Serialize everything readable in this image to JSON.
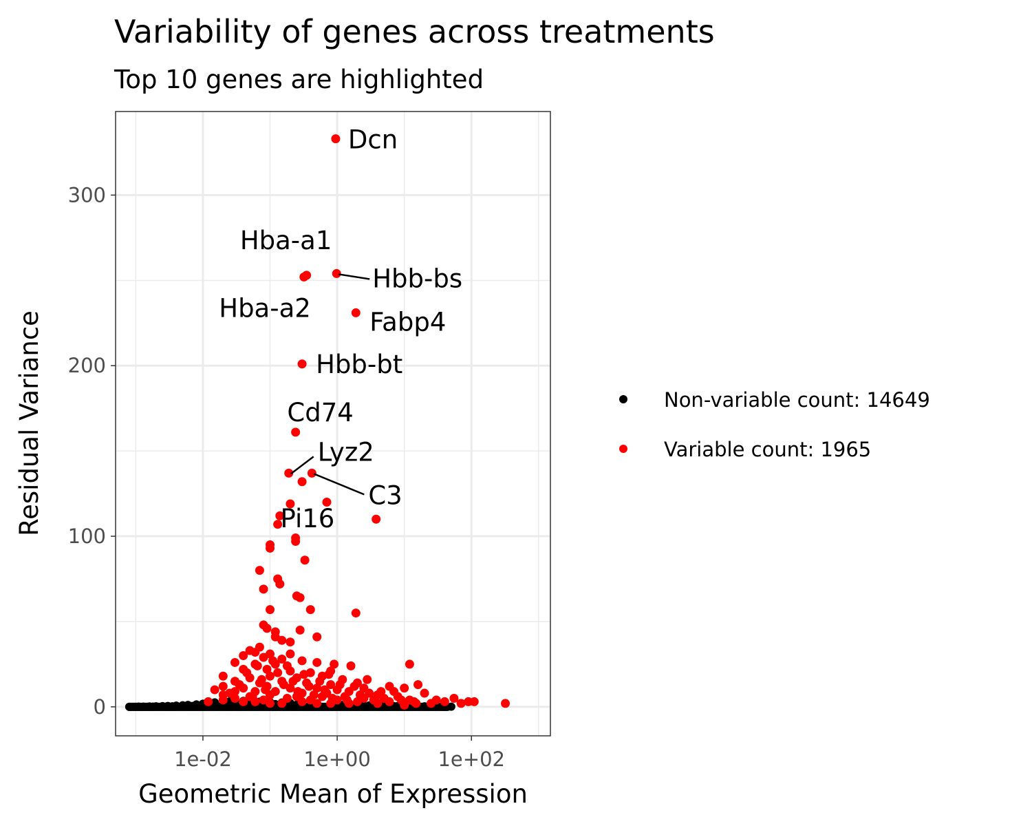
{
  "chart_data": {
    "type": "scatter",
    "title": "Variability of genes across treatments",
    "subtitle": "Top 10 genes are highlighted",
    "xlabel": "Geometric Mean of Expression",
    "ylabel": "Residual Variance",
    "x_scale": "log10",
    "xlim": [
      0.0005,
      1500
    ],
    "ylim": [
      -17,
      349
    ],
    "x_ticks": [
      0.01,
      1,
      100
    ],
    "x_tick_labels": [
      "1e-02",
      "1e+00",
      "1e+02"
    ],
    "y_ticks": [
      0,
      100,
      200,
      300
    ],
    "y_tick_labels": [
      "0",
      "100",
      "200",
      "300"
    ],
    "grid": true,
    "legend_position": "right",
    "colors": {
      "non_variable": "#000000",
      "variable": "#ff0000"
    },
    "series": [
      {
        "name": "Non-variable count: 14649",
        "color": "#000000",
        "points": [
          [
            0.001,
            0
          ],
          [
            0.0013,
            0.1
          ],
          [
            0.0016,
            0.2
          ],
          [
            0.002,
            0.3
          ],
          [
            0.0025,
            0.4
          ],
          [
            0.003,
            0.5
          ],
          [
            0.004,
            0.7
          ],
          [
            0.005,
            0.9
          ],
          [
            0.006,
            1.1
          ],
          [
            0.008,
            1.4
          ],
          [
            0.01,
            1.8
          ],
          [
            0.012,
            2.2
          ],
          [
            0.015,
            2.6
          ],
          [
            0.02,
            3
          ],
          [
            0.025,
            3.2
          ],
          [
            0.03,
            3.4
          ],
          [
            0.04,
            3.5
          ],
          [
            0.05,
            3.2
          ],
          [
            0.07,
            3
          ],
          [
            0.1,
            2.8
          ],
          [
            0.15,
            2.5
          ],
          [
            0.2,
            2.2
          ],
          [
            0.3,
            2
          ],
          [
            0.5,
            1.7
          ],
          [
            0.8,
            1.4
          ],
          [
            1.2,
            1.2
          ],
          [
            2,
            1
          ],
          [
            3,
            0.8
          ],
          [
            5,
            0.6
          ],
          [
            8,
            0.5
          ],
          [
            12,
            0.4
          ],
          [
            20,
            0.3
          ],
          [
            30,
            0.2
          ],
          [
            50,
            0.1
          ],
          [
            0.0015,
            0
          ],
          [
            0.003,
            0.1
          ],
          [
            0.006,
            0.2
          ],
          [
            0.012,
            0.4
          ],
          [
            0.025,
            0.6
          ],
          [
            0.05,
            0.8
          ],
          [
            0.1,
            0.9
          ],
          [
            0.2,
            1
          ],
          [
            0.4,
            0.8
          ],
          [
            0.8,
            0.6
          ],
          [
            1.5,
            0.5
          ],
          [
            3,
            0.3
          ],
          [
            6,
            0.2
          ],
          [
            10,
            0.1
          ],
          [
            0.0008,
            0
          ],
          [
            0.0011,
            0.1
          ],
          [
            0.0018,
            0.1
          ],
          [
            0.0035,
            0.3
          ],
          [
            0.007,
            0.5
          ],
          [
            0.015,
            1
          ],
          [
            0.03,
            1.5
          ],
          [
            0.06,
            1.8
          ],
          [
            0.12,
            1.6
          ],
          [
            0.25,
            1.3
          ],
          [
            0.5,
            1.1
          ],
          [
            1,
            0.9
          ],
          [
            2.5,
            0.7
          ],
          [
            7,
            0.4
          ],
          [
            15,
            0.2
          ],
          [
            25,
            0.1
          ],
          [
            40,
            0.05
          ]
        ]
      },
      {
        "name": "Variable count: 1965",
        "color": "#ff0000",
        "points": [
          [
            0.95,
            333
          ],
          [
            0.32,
            252
          ],
          [
            0.35,
            253
          ],
          [
            0.98,
            254
          ],
          [
            1.9,
            231
          ],
          [
            0.3,
            201
          ],
          [
            0.24,
            161
          ],
          [
            0.19,
            137
          ],
          [
            0.42,
            137
          ],
          [
            0.3,
            132
          ],
          [
            0.7,
            120
          ],
          [
            3.8,
            110
          ],
          [
            0.2,
            119
          ],
          [
            0.14,
            112
          ],
          [
            0.13,
            107
          ],
          [
            0.24,
            99
          ],
          [
            0.24,
            97
          ],
          [
            0.1,
            95
          ],
          [
            0.1,
            93
          ],
          [
            0.33,
            86
          ],
          [
            0.07,
            80
          ],
          [
            0.13,
            75
          ],
          [
            0.14,
            72
          ],
          [
            0.08,
            69
          ],
          [
            0.25,
            65
          ],
          [
            0.28,
            64
          ],
          [
            0.1,
            57
          ],
          [
            0.4,
            57
          ],
          [
            1.9,
            55
          ],
          [
            0.08,
            48
          ],
          [
            0.09,
            46
          ],
          [
            0.12,
            44
          ],
          [
            0.28,
            45
          ],
          [
            0.12,
            41
          ],
          [
            0.5,
            41
          ],
          [
            0.15,
            39
          ],
          [
            0.2,
            38
          ],
          [
            0.07,
            35
          ],
          [
            0.05,
            33
          ],
          [
            0.06,
            32
          ],
          [
            0.1,
            31
          ],
          [
            0.2,
            31
          ],
          [
            0.04,
            30
          ],
          [
            0.08,
            29
          ],
          [
            0.15,
            28
          ],
          [
            0.3,
            27
          ],
          [
            0.03,
            26
          ],
          [
            0.06,
            25
          ],
          [
            0.12,
            25
          ],
          [
            0.5,
            26
          ],
          [
            0.9,
            25
          ],
          [
            1.6,
            24
          ],
          [
            12,
            25
          ],
          [
            0.04,
            22
          ],
          [
            0.09,
            22
          ],
          [
            0.2,
            21
          ],
          [
            0.4,
            20
          ],
          [
            0.8,
            21
          ],
          [
            0.02,
            18
          ],
          [
            0.05,
            17
          ],
          [
            0.1,
            18
          ],
          [
            0.25,
            17
          ],
          [
            0.6,
            18
          ],
          [
            1.2,
            16
          ],
          [
            0.03,
            15
          ],
          [
            0.07,
            14
          ],
          [
            0.15,
            15
          ],
          [
            0.35,
            14
          ],
          [
            0.8,
            13
          ],
          [
            2,
            14
          ],
          [
            16,
            13
          ],
          [
            0.02,
            12
          ],
          [
            0.04,
            11
          ],
          [
            0.09,
            12
          ],
          [
            0.2,
            11
          ],
          [
            0.5,
            11
          ],
          [
            1,
            10
          ],
          [
            2.5,
            11
          ],
          [
            10,
            11
          ],
          [
            0.015,
            10
          ],
          [
            0.03,
            9
          ],
          [
            0.06,
            9
          ],
          [
            0.12,
            9
          ],
          [
            0.3,
            8
          ],
          [
            0.7,
            8
          ],
          [
            1.5,
            9
          ],
          [
            3,
            8
          ],
          [
            7,
            9
          ],
          [
            20,
            8
          ],
          [
            0.02,
            7
          ],
          [
            0.05,
            6
          ],
          [
            0.1,
            7
          ],
          [
            0.25,
            6
          ],
          [
            0.6,
            6
          ],
          [
            1.3,
            6
          ],
          [
            4,
            7
          ],
          [
            8,
            6
          ],
          [
            0.03,
            5
          ],
          [
            0.08,
            4
          ],
          [
            0.18,
            5
          ],
          [
            0.4,
            4
          ],
          [
            1,
            4
          ],
          [
            2.5,
            5
          ],
          [
            5,
            5
          ],
          [
            12,
            4
          ],
          [
            30,
            4
          ],
          [
            55,
            5
          ],
          [
            0.04,
            3
          ],
          [
            0.1,
            2
          ],
          [
            0.3,
            3
          ],
          [
            0.8,
            2
          ],
          [
            2,
            3
          ],
          [
            6,
            3
          ],
          [
            15,
            2
          ],
          [
            40,
            3
          ],
          [
            90,
            3
          ],
          [
            110,
            3
          ],
          [
            320,
            2
          ],
          [
            0.012,
            3
          ],
          [
            0.02,
            4
          ],
          [
            0.06,
            3
          ],
          [
            0.15,
            2
          ],
          [
            0.5,
            2
          ],
          [
            1.5,
            2
          ],
          [
            4,
            2
          ],
          [
            10,
            1
          ],
          [
            25,
            2
          ],
          [
            70,
            2
          ],
          [
            0.025,
            8
          ],
          [
            0.035,
            13
          ],
          [
            0.045,
            20
          ],
          [
            0.055,
            6
          ],
          [
            0.065,
            24
          ],
          [
            0.075,
            16
          ],
          [
            0.085,
            10
          ],
          [
            0.11,
            27
          ],
          [
            0.13,
            20
          ],
          [
            0.16,
            13
          ],
          [
            0.18,
            24
          ],
          [
            0.22,
            15
          ],
          [
            0.26,
            9
          ],
          [
            0.32,
            19
          ],
          [
            0.38,
            12
          ],
          [
            0.45,
            7
          ],
          [
            0.55,
            15
          ],
          [
            0.65,
            10
          ],
          [
            0.75,
            19
          ],
          [
            0.85,
            5
          ],
          [
            1.1,
            13
          ],
          [
            1.4,
            4
          ],
          [
            1.8,
            12
          ],
          [
            2.2,
            7
          ],
          [
            2.8,
            16
          ],
          [
            3.5,
            4
          ],
          [
            4.5,
            9
          ],
          [
            6,
            12
          ],
          [
            9,
            4
          ],
          [
            14,
            3
          ]
        ]
      }
    ],
    "annotations": [
      {
        "label": "Dcn",
        "x": 0.95,
        "y": 333
      },
      {
        "label": "Hba-a1",
        "x": 0.35,
        "y": 253
      },
      {
        "label": "Hbb-bs",
        "x": 0.98,
        "y": 254
      },
      {
        "label": "Hba-a2",
        "x": 0.32,
        "y": 252
      },
      {
        "label": "Fabp4",
        "x": 1.9,
        "y": 231
      },
      {
        "label": "Hbb-bt",
        "x": 0.3,
        "y": 201
      },
      {
        "label": "Cd74",
        "x": 0.24,
        "y": 161
      },
      {
        "label": "Lyz2",
        "x": 0.19,
        "y": 137
      },
      {
        "label": "C3",
        "x": 0.42,
        "y": 137
      },
      {
        "label": "Pi16",
        "x": 0.2,
        "y": 119
      }
    ]
  }
}
